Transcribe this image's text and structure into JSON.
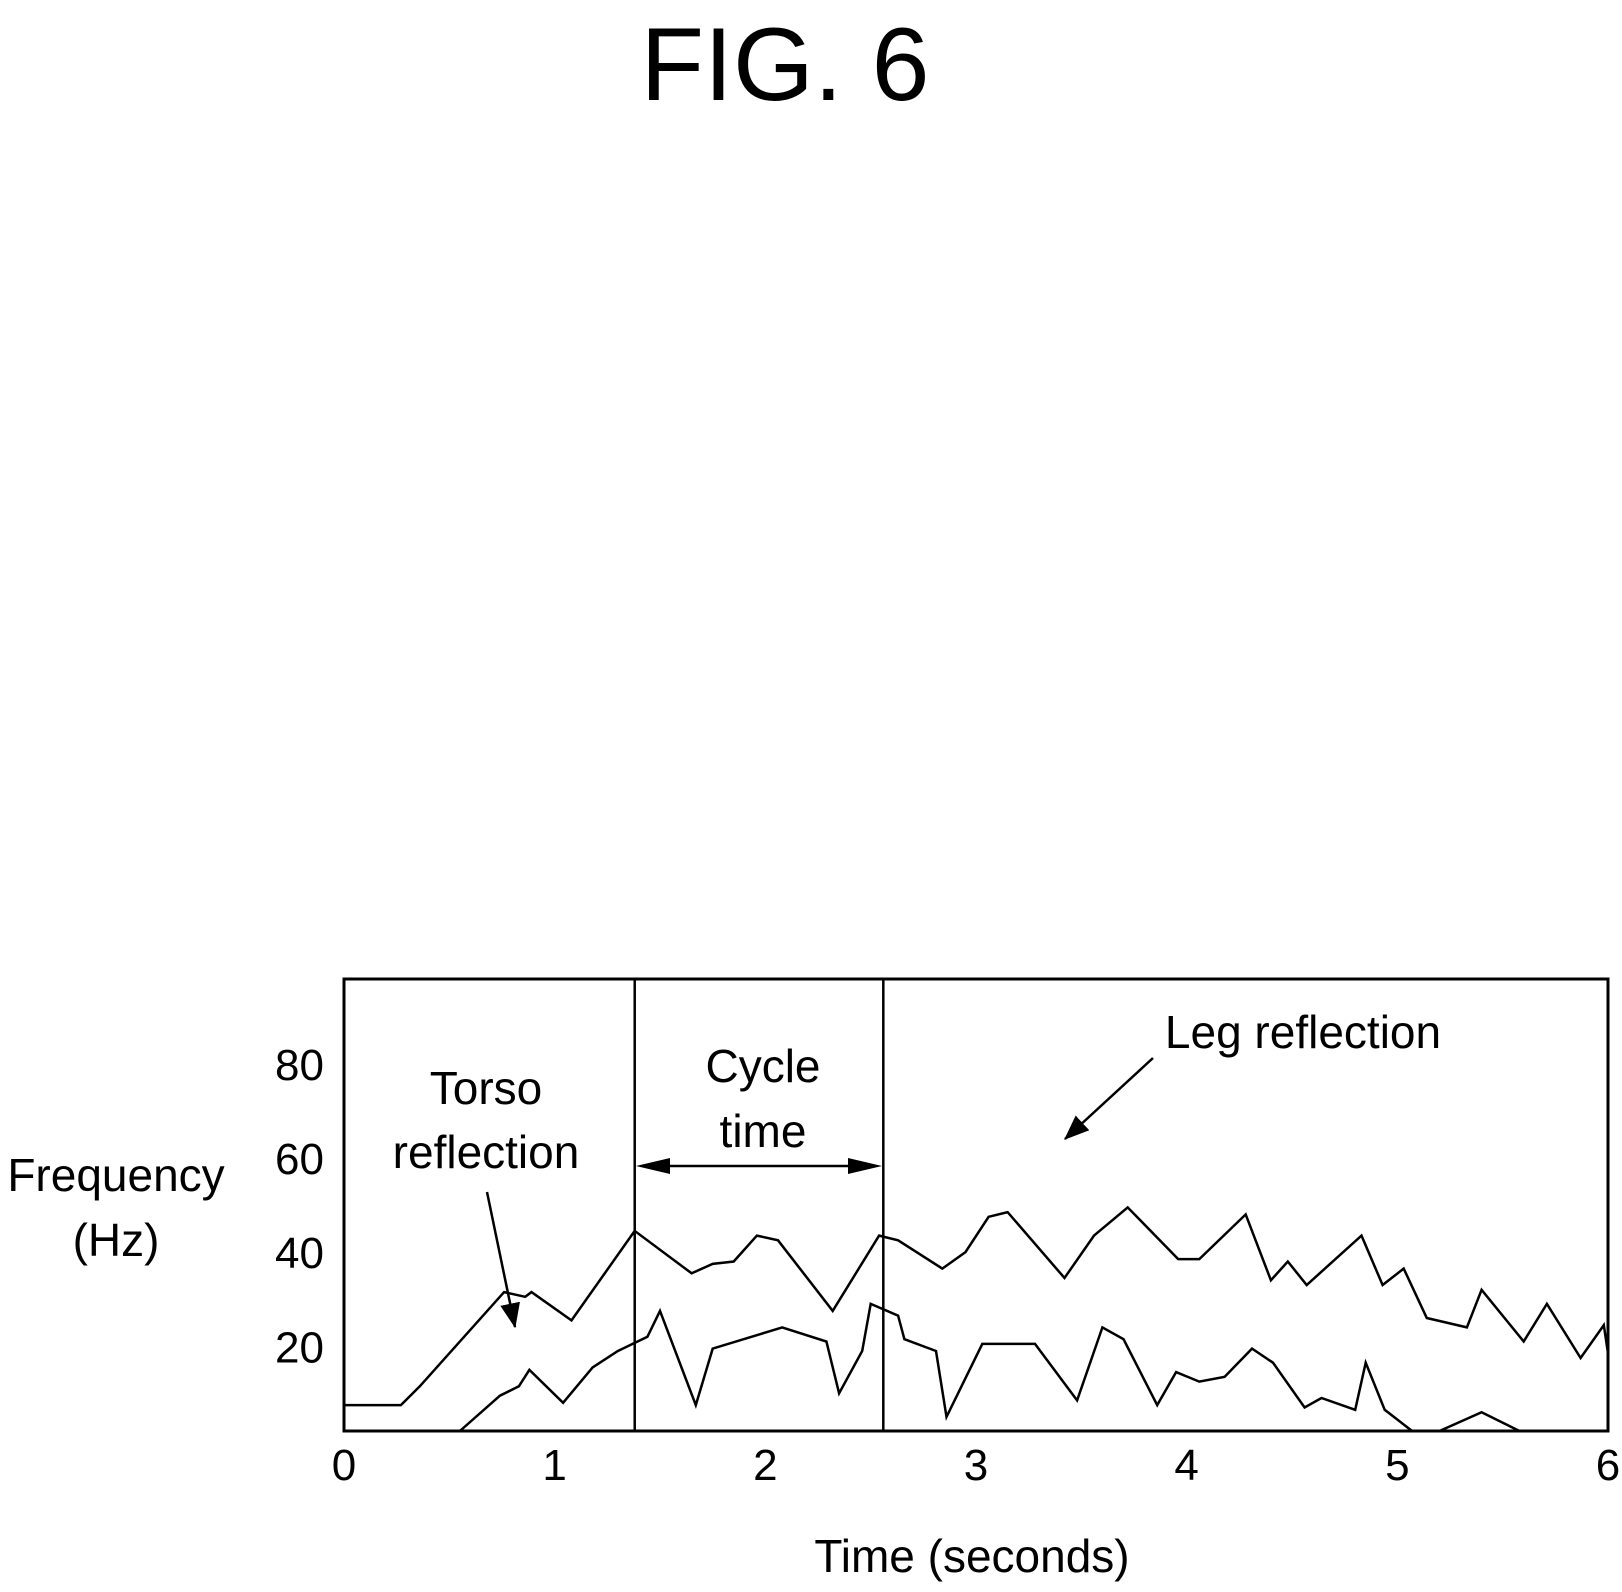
{
  "figure_title": "FIG. 6",
  "chart_data": {
    "type": "line",
    "title": "",
    "xlabel": "Time (seconds)",
    "ylabel_lines": [
      "Frequency",
      "(Hz)"
    ],
    "xlim": [
      0,
      6
    ],
    "ylim": [
      2,
      98
    ],
    "x_ticks": [
      "0",
      "1",
      "2",
      "3",
      "4",
      "5",
      "6"
    ],
    "x_tick_values": [
      0,
      1,
      2,
      3,
      4,
      5,
      6
    ],
    "y_ticks": [
      "20",
      "40",
      "60",
      "80"
    ],
    "y_tick_values": [
      20,
      40,
      60,
      80
    ],
    "grid": false,
    "legend": "none",
    "vertical_lines": [
      1.38,
      2.56
    ],
    "annotations": {
      "torso_line1": "Torso",
      "torso_line2": "reflection",
      "cycle_line1": "Cycle",
      "cycle_line2": "time",
      "leg": "Leg reflection"
    },
    "series": [
      {
        "x": [
          0.0,
          0.27,
          0.36,
          0.76,
          0.86,
          0.89,
          1.08,
          1.38,
          1.65,
          1.75,
          1.85,
          1.96,
          2.06,
          2.32,
          2.54,
          2.63,
          2.84,
          2.95,
          3.06,
          3.15,
          3.42,
          3.56,
          3.72,
          3.96,
          4.06,
          4.28,
          4.4,
          4.48,
          4.57,
          4.83,
          4.93,
          5.03,
          5.14,
          5.33,
          5.4,
          5.6,
          5.71,
          5.87,
          5.98,
          6.0
        ],
        "y": [
          7.5,
          7.5,
          11.5,
          31.5,
          30.5,
          31.5,
          25.5,
          44.5,
          35.5,
          37.5,
          38.0,
          43.5,
          42.5,
          27.5,
          43.5,
          42.5,
          36.5,
          40.0,
          47.5,
          48.5,
          34.5,
          43.5,
          49.5,
          38.5,
          38.5,
          48.0,
          34.0,
          38.0,
          33.0,
          43.5,
          33.0,
          36.5,
          26.0,
          24.0,
          32.0,
          21.0,
          29.0,
          17.5,
          24.5,
          18.5
        ]
      },
      {
        "x": [
          0.55,
          0.74,
          0.83,
          0.88,
          1.04,
          1.18,
          1.3,
          1.44,
          1.5,
          1.67,
          1.75,
          2.08,
          2.29,
          2.35,
          2.46,
          2.5,
          2.63,
          2.66,
          2.81,
          2.86,
          3.03,
          3.28,
          3.48,
          3.6,
          3.7,
          3.86,
          3.95,
          4.06,
          4.18,
          4.31,
          4.41,
          4.56,
          4.64,
          4.8,
          4.85,
          4.94,
          5.07
        ],
        "y": [
          2.0,
          9.5,
          11.5,
          15.0,
          8.0,
          15.5,
          19.0,
          22.0,
          27.5,
          7.5,
          19.5,
          24.0,
          21.0,
          10.0,
          19.0,
          29.0,
          26.5,
          21.5,
          19.0,
          5.0,
          20.5,
          20.5,
          8.5,
          24.0,
          21.5,
          7.5,
          14.5,
          12.5,
          13.5,
          19.5,
          16.5,
          7.0,
          9.0,
          6.5,
          16.5,
          6.5,
          2.0
        ]
      },
      {
        "x": [
          5.2,
          5.4,
          5.58
        ],
        "y": [
          2.0,
          6.0,
          2.0
        ]
      }
    ]
  }
}
